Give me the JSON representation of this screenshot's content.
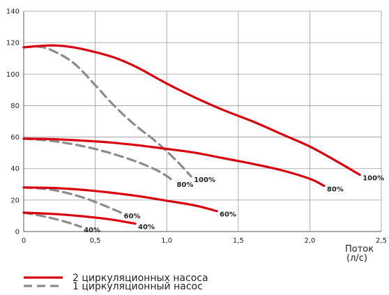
{
  "chart_data": {
    "type": "line",
    "xlabel": "Поток\n(л/с)",
    "ylabel": "",
    "xlim": [
      0,
      2.5
    ],
    "ylim": [
      0,
      140
    ],
    "x_ticks": [
      "0",
      "0,5",
      "1,0",
      "1,5",
      "2,0",
      "2,5"
    ],
    "y_ticks": [
      "0",
      "20",
      "40",
      "60",
      "80",
      "100",
      "120",
      "140"
    ],
    "grid": true,
    "legend": [
      {
        "label": "2 циркуляционных насоса",
        "style": "solid",
        "color": "#d9000d"
      },
      {
        "label": "1 циркуляционный насос",
        "style": "dashed",
        "color": "#8c8c8c"
      }
    ],
    "series": [
      {
        "group": "2",
        "label": "100%",
        "color": "#d9000d",
        "dash": false,
        "points": [
          [
            0,
            117
          ],
          [
            0.1,
            117.8
          ],
          [
            0.22,
            118.2
          ],
          [
            0.35,
            117
          ],
          [
            0.5,
            114
          ],
          [
            0.65,
            110
          ],
          [
            0.8,
            104
          ],
          [
            1.0,
            94
          ],
          [
            1.2,
            85
          ],
          [
            1.4,
            77
          ],
          [
            1.6,
            70
          ],
          [
            1.8,
            62
          ],
          [
            2.0,
            54
          ],
          [
            2.2,
            44
          ],
          [
            2.35,
            36
          ]
        ]
      },
      {
        "group": "2",
        "label": "80%",
        "color": "#d9000d",
        "dash": false,
        "points": [
          [
            0,
            59
          ],
          [
            0.2,
            58.7
          ],
          [
            0.4,
            57.8
          ],
          [
            0.6,
            56.6
          ],
          [
            0.8,
            54.8
          ],
          [
            1.0,
            52.5
          ],
          [
            1.2,
            50
          ],
          [
            1.4,
            46.5
          ],
          [
            1.6,
            43
          ],
          [
            1.8,
            39
          ],
          [
            2.0,
            33.5
          ],
          [
            2.1,
            29
          ]
        ]
      },
      {
        "group": "2",
        "label": "60%",
        "color": "#d9000d",
        "dash": false,
        "points": [
          [
            0,
            28
          ],
          [
            0.2,
            27.7
          ],
          [
            0.4,
            26.6
          ],
          [
            0.6,
            24.8
          ],
          [
            0.8,
            22.5
          ],
          [
            1.0,
            19.6
          ],
          [
            1.2,
            16.5
          ],
          [
            1.35,
            13
          ]
        ]
      },
      {
        "group": "2",
        "label": "40%",
        "color": "#d9000d",
        "dash": false,
        "points": [
          [
            0,
            12
          ],
          [
            0.2,
            11.2
          ],
          [
            0.4,
            9.8
          ],
          [
            0.6,
            7.8
          ],
          [
            0.78,
            5
          ]
        ]
      },
      {
        "group": "1",
        "label": "100%",
        "color": "#8c8c8c",
        "dash": true,
        "points": [
          [
            0,
            117
          ],
          [
            0.1,
            117.5
          ],
          [
            0.2,
            115
          ],
          [
            0.35,
            107
          ],
          [
            0.5,
            93
          ],
          [
            0.6,
            83
          ],
          [
            0.7,
            74
          ],
          [
            0.8,
            66
          ],
          [
            0.9,
            59
          ],
          [
            1.0,
            51
          ],
          [
            1.1,
            42
          ],
          [
            1.17,
            35
          ]
        ]
      },
      {
        "group": "1",
        "label": "80%",
        "color": "#8c8c8c",
        "dash": true,
        "points": [
          [
            0,
            59
          ],
          [
            0.2,
            57.5
          ],
          [
            0.4,
            54.5
          ],
          [
            0.6,
            50
          ],
          [
            0.8,
            44
          ],
          [
            0.95,
            38
          ],
          [
            1.05,
            32
          ]
        ]
      },
      {
        "group": "1",
        "label": "60%",
        "color": "#8c8c8c",
        "dash": true,
        "points": [
          [
            0,
            28
          ],
          [
            0.2,
            26.5
          ],
          [
            0.4,
            22
          ],
          [
            0.55,
            17
          ],
          [
            0.68,
            12
          ]
        ]
      },
      {
        "group": "1",
        "label": "40%",
        "color": "#8c8c8c",
        "dash": true,
        "points": [
          [
            0,
            12
          ],
          [
            0.15,
            9.5
          ],
          [
            0.3,
            6
          ],
          [
            0.4,
            3
          ]
        ]
      }
    ]
  }
}
